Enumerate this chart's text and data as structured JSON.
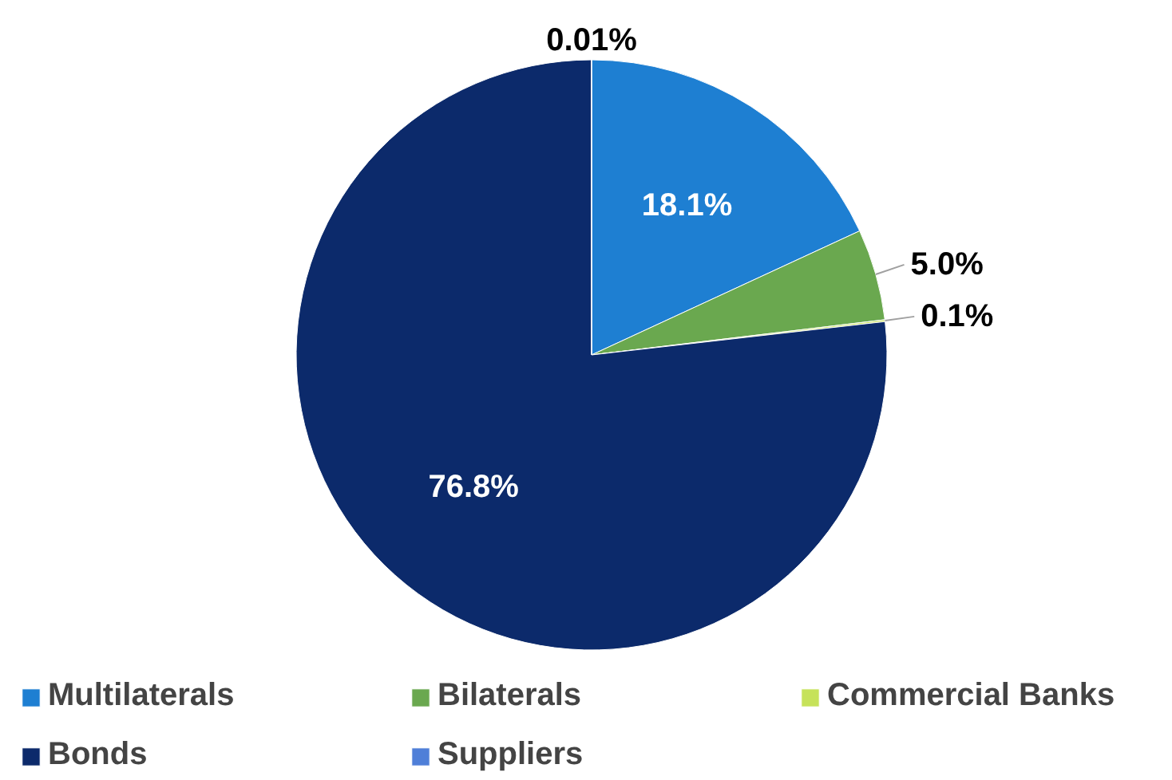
{
  "chart_data": {
    "type": "pie",
    "categories": [
      "Multilaterals",
      "Bilaterals",
      "Commercial Banks",
      "Bonds",
      "Suppliers"
    ],
    "values": [
      18.1,
      5.0,
      0.1,
      76.8,
      0.01
    ],
    "colors": [
      "#1e7fd2",
      "#6aa84f",
      "#c6e25a",
      "#0c2a6b",
      "#4f7fd8"
    ],
    "value_labels": [
      "18.1%",
      "5.0%",
      "0.1%",
      "76.8%",
      "0.01%"
    ],
    "legend": "bottom"
  }
}
